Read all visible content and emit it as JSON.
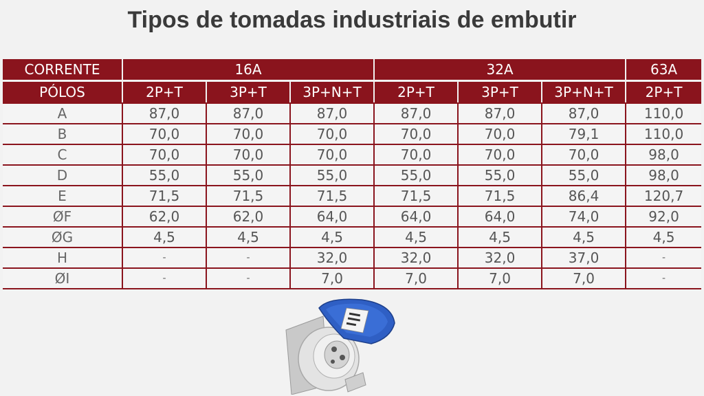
{
  "title": "Tipos de tomadas industriais de embutir",
  "table": {
    "header_row1": {
      "label": "CORRENTE",
      "groups": [
        "16A",
        "32A",
        "63A"
      ]
    },
    "header_row2": {
      "label": "PÓLOS",
      "columns": [
        "2P+T",
        "3P+T",
        "3P+N+T",
        "2P+T",
        "3P+T",
        "3P+N+T",
        "2P+T"
      ]
    },
    "rows": [
      {
        "label": "A",
        "values": [
          "87,0",
          "87,0",
          "87,0",
          "87,0",
          "87,0",
          "87,0",
          "110,0"
        ]
      },
      {
        "label": "B",
        "values": [
          "70,0",
          "70,0",
          "70,0",
          "70,0",
          "70,0",
          "79,1",
          "110,0"
        ]
      },
      {
        "label": "C",
        "values": [
          "70,0",
          "70,0",
          "70,0",
          "70,0",
          "70,0",
          "70,0",
          "98,0"
        ]
      },
      {
        "label": "D",
        "values": [
          "55,0",
          "55,0",
          "55,0",
          "55,0",
          "55,0",
          "55,0",
          "98,0"
        ]
      },
      {
        "label": "E",
        "values": [
          "71,5",
          "71,5",
          "71,5",
          "71,5",
          "71,5",
          "86,4",
          "120,7"
        ]
      },
      {
        "label": "ØF",
        "values": [
          "62,0",
          "62,0",
          "64,0",
          "64,0",
          "64,0",
          "74,0",
          "92,0"
        ]
      },
      {
        "label": "ØG",
        "values": [
          "4,5",
          "4,5",
          "4,5",
          "4,5",
          "4,5",
          "4,5",
          "4,5"
        ]
      },
      {
        "label": "H",
        "values": [
          "-",
          "-",
          "32,0",
          "32,0",
          "32,0",
          "37,0",
          "-"
        ]
      },
      {
        "label": "ØI",
        "values": [
          "-",
          "-",
          "7,0",
          "7,0",
          "7,0",
          "7,0",
          "-"
        ]
      }
    ]
  },
  "colors": {
    "header_bg": "#8a141d",
    "header_text": "#ffffff",
    "grid_line": "#8a141d",
    "cover_blue": "#2f5fc4",
    "body_grey": "#d8d8d8"
  },
  "image": {
    "icon": "industrial-socket-blue-cover"
  }
}
